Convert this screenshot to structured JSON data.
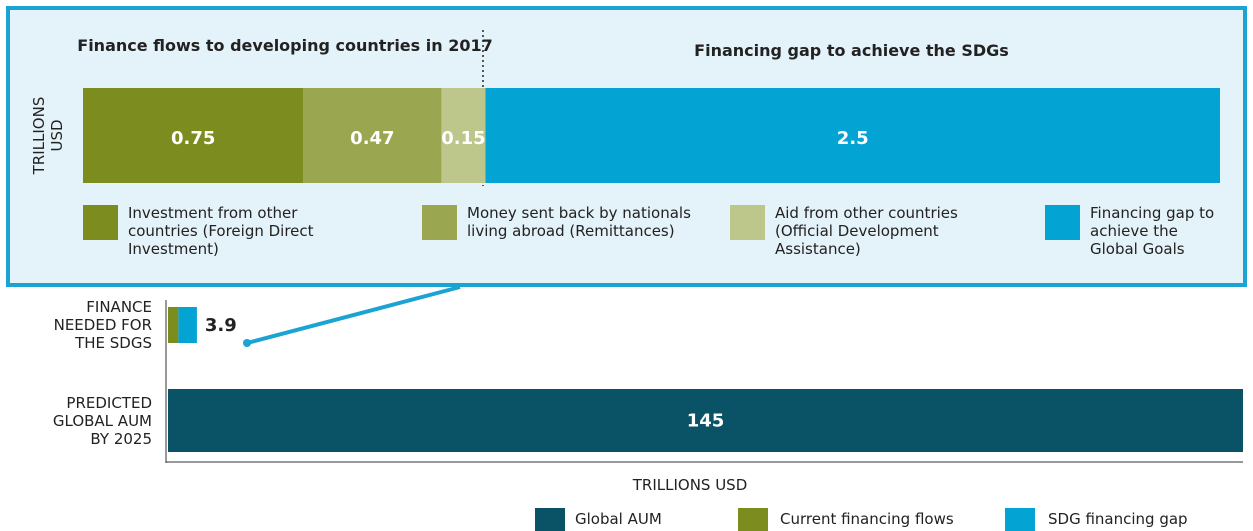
{
  "chart_data": [
    {
      "type": "stacked-bar",
      "annotations": [
        "Finance flows to developing countries in 2017",
        "Financing gap to achieve the SDGs"
      ],
      "ylabel": "TRILLIONS USD",
      "xlim": [
        0,
        3.87
      ],
      "series": [
        {
          "name": "Investment from other countries (Foreign Direct Investment)",
          "color": "#7d8c1e",
          "values": [
            0.75
          ]
        },
        {
          "name": "Money sent back by nationals living abroad (Remittances)",
          "color": "#9ba650",
          "values": [
            0.47
          ]
        },
        {
          "name": "Aid from other countries (Official Development Assistance)",
          "color": "#bdc78b",
          "values": [
            0.15
          ]
        },
        {
          "name": "Financing gap to achieve the Global Goals",
          "color": "#03a3d3",
          "values": [
            2.5
          ]
        }
      ]
    },
    {
      "type": "stacked-bar",
      "categories": [
        "FINANCE NEEDED FOR THE SDGS",
        "PREDICTED GLOBAL AUM BY 2025"
      ],
      "xlabel": "TRILLIONS USD",
      "xlim": [
        0,
        145
      ],
      "totals": [
        3.9,
        145
      ],
      "series": [
        {
          "name": "Global AUM",
          "color": "#0a5266",
          "values": [
            null,
            145
          ]
        },
        {
          "name": "Current financing flows",
          "color": "#7d8c1e",
          "values": [
            1.4,
            null
          ]
        },
        {
          "name": "SDG financing gap",
          "color": "#03a3d3",
          "values": [
            2.5,
            null
          ]
        }
      ]
    }
  ]
}
